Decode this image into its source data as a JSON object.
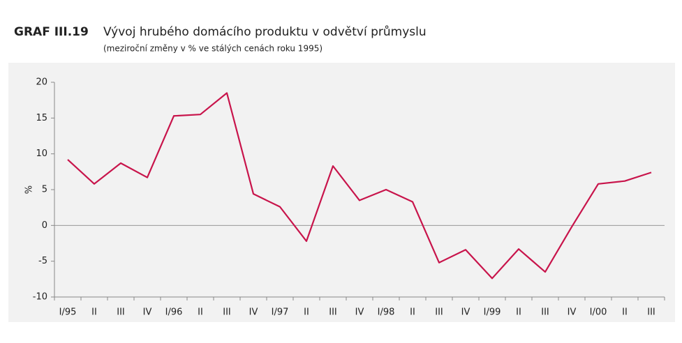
{
  "chart_data": {
    "type": "line",
    "label": "GRAF III.19",
    "title": "Vývoj hrubého domácího produktu v odvětví průmyslu",
    "subtitle": "(meziroční změny v % ve stálých cenách roku 1995)",
    "y_label": "%",
    "categories": [
      "I/95",
      "II",
      "III",
      "IV",
      "I/96",
      "II",
      "III",
      "IV",
      "I/97",
      "II",
      "III",
      "IV",
      "I/98",
      "II",
      "III",
      "IV",
      "I/99",
      "II",
      "III",
      "IV",
      "I/00",
      "II",
      "III"
    ],
    "series": [
      {
        "color": "#c8144b",
        "values": [
          9.2,
          5.8,
          8.7,
          6.7,
          15.3,
          15.5,
          18.5,
          4.4,
          2.6,
          -2.2,
          8.3,
          3.5,
          5.0,
          3.3,
          -5.2,
          -3.4,
          -7.4,
          -3.3,
          -6.5,
          -0.2,
          5.8,
          6.2,
          7.4
        ]
      }
    ],
    "ylim": [
      -10,
      20
    ],
    "yticks": [
      -10,
      -5,
      0,
      5,
      10,
      15,
      20
    ]
  }
}
